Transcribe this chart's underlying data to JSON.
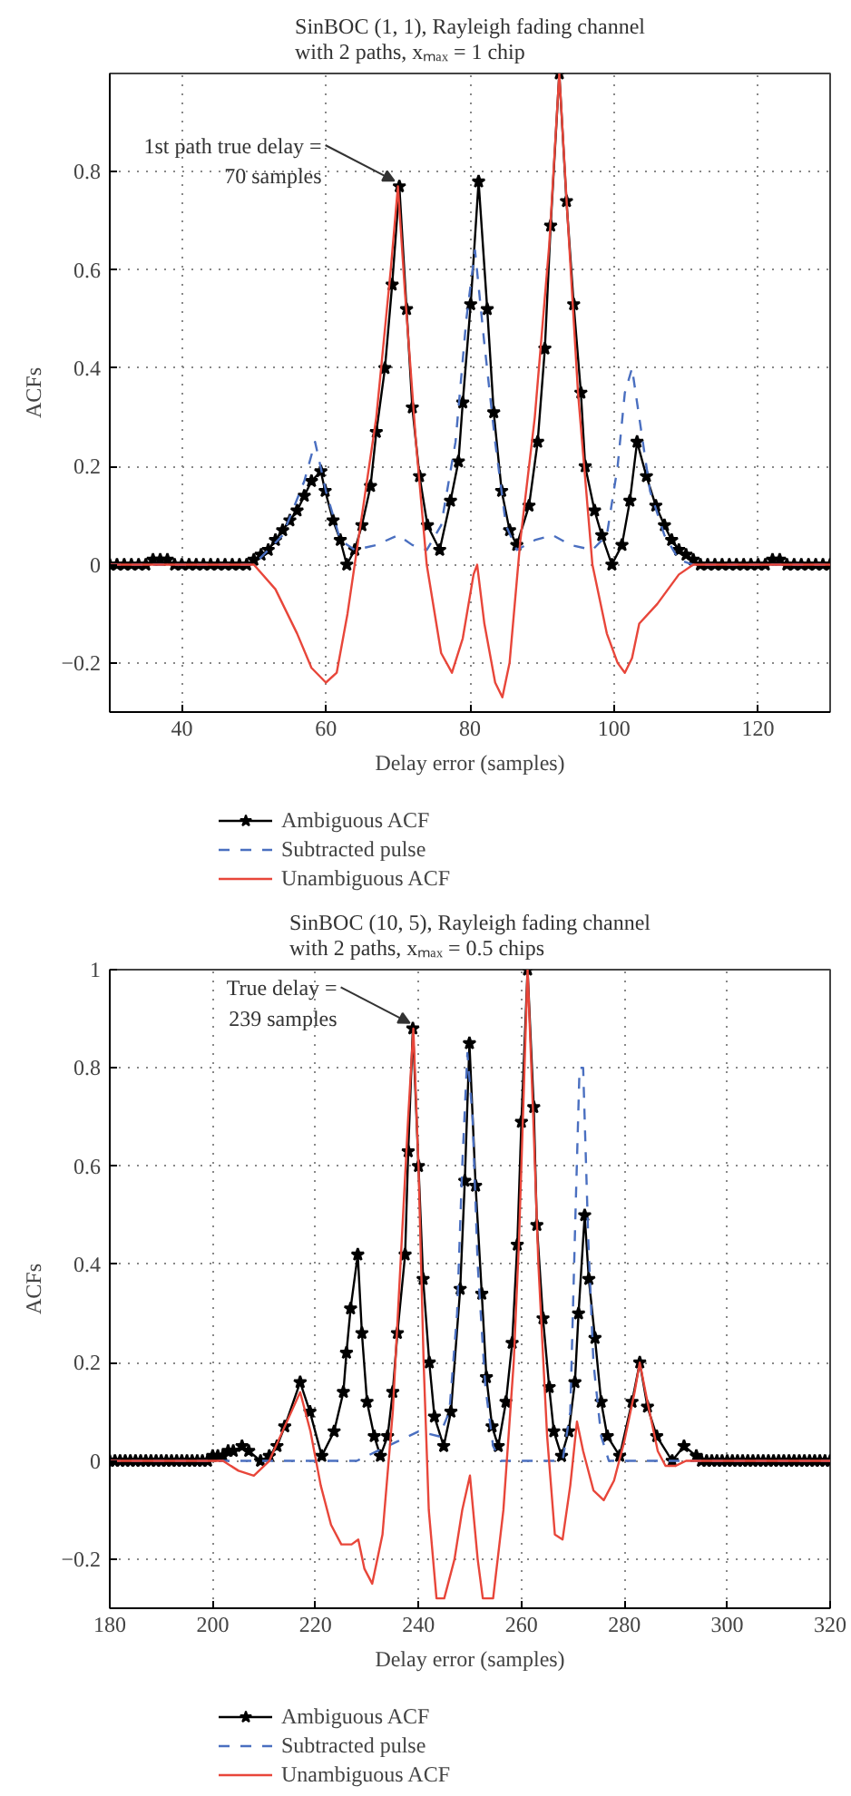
{
  "chart_data": [
    {
      "type": "line",
      "title": "SinBOC (1, 1), Rayleigh fading channel\nwith 2 paths, xₘₐₓ = 1 chip",
      "xlabel": "Delay error (samples)",
      "ylabel": "ACFs",
      "xlim": [
        30,
        130
      ],
      "ylim": [
        -0.3,
        1.0
      ],
      "xticks": [
        40,
        60,
        80,
        100,
        120
      ],
      "yticks": [
        {
          "value": -0.2,
          "label": "−0.2"
        },
        0,
        0.2,
        0.4,
        0.6,
        0.8
      ],
      "grid": true,
      "legend": "bottom",
      "annotations": [
        {
          "text": "1st path true delay =\n70 samples",
          "x": 70,
          "y": 0.77
        }
      ],
      "series": [
        {
          "name": "Ambiguous ACF",
          "color": "#000000",
          "marker": "star",
          "line_style": "solid",
          "x": [
            30,
            31,
            32,
            33,
            34,
            35,
            36,
            37,
            38,
            39,
            40,
            41,
            42,
            43,
            44,
            45,
            46,
            47,
            48,
            49,
            50,
            51,
            52,
            53,
            54,
            55,
            56,
            57,
            58,
            59.3,
            59.9,
            61,
            62,
            62.9,
            64,
            65,
            66.2,
            67,
            68.2,
            69.2,
            70.2,
            71.2,
            72,
            73,
            74.1,
            75.8,
            77.3,
            78.4,
            79,
            80.1,
            81.2,
            82.4,
            83.3,
            84.4,
            85.5,
            86.5,
            88.2,
            89.4,
            90.4,
            91.2,
            92.4,
            93.4,
            94.4,
            95.4,
            96,
            97.3,
            98.3,
            99.7,
            101.1,
            102.2,
            103.2,
            104.5,
            105.8,
            107,
            108,
            109,
            110,
            111,
            112,
            113,
            114,
            115,
            116,
            117,
            118,
            119,
            120,
            121,
            122,
            123,
            124,
            125,
            126,
            127,
            128,
            129,
            130
          ],
          "values": [
            0,
            0,
            0,
            0,
            0,
            0,
            0.01,
            0.01,
            0.01,
            0,
            0,
            0,
            0,
            0,
            0,
            0,
            0,
            0,
            0,
            0,
            0.01,
            0.02,
            0.03,
            0.05,
            0.07,
            0.09,
            0.11,
            0.14,
            0.17,
            0.19,
            0.15,
            0.09,
            0.05,
            0.0,
            0.03,
            0.08,
            0.16,
            0.27,
            0.4,
            0.57,
            0.77,
            0.52,
            0.32,
            0.18,
            0.08,
            0.03,
            0.13,
            0.21,
            0.33,
            0.53,
            0.78,
            0.52,
            0.31,
            0.15,
            0.07,
            0.04,
            0.12,
            0.25,
            0.44,
            0.69,
            1.0,
            0.74,
            0.53,
            0.35,
            0.2,
            0.11,
            0.06,
            0.0,
            0.04,
            0.13,
            0.25,
            0.18,
            0.12,
            0.08,
            0.05,
            0.03,
            0.02,
            0.01,
            0,
            0,
            0,
            0,
            0,
            0,
            0,
            0,
            0,
            0,
            0.01,
            0.01,
            0,
            0,
            0,
            0,
            0,
            0,
            0
          ]
        },
        {
          "name": "Subtracted pulse",
          "color": "#4a6fc0",
          "marker": "none",
          "line_style": "dashed",
          "x": [
            30,
            50,
            54,
            57,
            58.5,
            60,
            62,
            64,
            67,
            70,
            72,
            74,
            76,
            78,
            79.5,
            80.7,
            82,
            83.5,
            85,
            86.5,
            89,
            91.5,
            94,
            97,
            99,
            100.5,
            101.5,
            102.5,
            103.5,
            105,
            107,
            109,
            111,
            130
          ],
          "values": [
            0,
            0,
            0.06,
            0.17,
            0.25,
            0.15,
            0.05,
            0.03,
            0.04,
            0.06,
            0.04,
            0.03,
            0.08,
            0.25,
            0.5,
            0.64,
            0.45,
            0.25,
            0.08,
            0.03,
            0.05,
            0.06,
            0.04,
            0.03,
            0.06,
            0.2,
            0.35,
            0.4,
            0.3,
            0.15,
            0.06,
            0.01,
            0,
            0
          ]
        },
        {
          "name": "Unambiguous ACF",
          "color": "#e8463a",
          "marker": "none",
          "line_style": "solid",
          "x": [
            30,
            50,
            53,
            56,
            58,
            60,
            61.5,
            63,
            65,
            67,
            69,
            70,
            71,
            72.5,
            74,
            76,
            77.5,
            79,
            80.5,
            81,
            82,
            83.5,
            84.5,
            85.5,
            87,
            89,
            91,
            92.4,
            93.5,
            95,
            97,
            99,
            100.5,
            101.5,
            102.5,
            103.5,
            106,
            109,
            111,
            130
          ],
          "values": [
            0,
            0,
            -0.05,
            -0.14,
            -0.21,
            -0.24,
            -0.22,
            -0.1,
            0.1,
            0.3,
            0.6,
            0.77,
            0.55,
            0.25,
            0,
            -0.18,
            -0.22,
            -0.15,
            -0.02,
            0.0,
            -0.12,
            -0.24,
            -0.27,
            -0.2,
            0.05,
            0.3,
            0.65,
            1.0,
            0.72,
            0.35,
            0.0,
            -0.14,
            -0.2,
            -0.22,
            -0.19,
            -0.12,
            -0.08,
            -0.02,
            0,
            0
          ]
        }
      ]
    },
    {
      "type": "line",
      "title": "SinBOC (10, 5), Rayleigh fading channel\nwith 2 paths, xₘₐₓ = 0.5 chips",
      "xlabel": "Delay error (samples)",
      "ylabel": "ACFs",
      "xlim": [
        180,
        320
      ],
      "ylim": [
        -0.3,
        1.0
      ],
      "xticks": [
        180,
        200,
        220,
        240,
        260,
        280,
        300,
        320
      ],
      "yticks": [
        {
          "value": -0.2,
          "label": "−0.2"
        },
        0,
        0.2,
        0.4,
        0.6,
        0.8,
        1
      ],
      "grid": true,
      "legend": "bottom",
      "annotations": [
        {
          "text": "True delay =\n239 samples",
          "x": 239,
          "y": 0.88
        }
      ],
      "series": [
        {
          "name": "Ambiguous ACF",
          "color": "#000000",
          "marker": "star",
          "line_style": "solid",
          "x": [
            180,
            181,
            182,
            183,
            184,
            185,
            186,
            187,
            188,
            189,
            190,
            191,
            192,
            193,
            194,
            195,
            196,
            197,
            198,
            199,
            200,
            201,
            202,
            203,
            204,
            205.7,
            207,
            209.3,
            211,
            212.5,
            214,
            217,
            218.9,
            221.2,
            223.6,
            225.4,
            226,
            226.8,
            228.2,
            229,
            230,
            231.4,
            232.6,
            234,
            235,
            235.9,
            237.4,
            238,
            238.9,
            240,
            240.9,
            242.1,
            243.1,
            244.9,
            246.3,
            248.1,
            249,
            249.9,
            251.1,
            252.3,
            253.2,
            254.3,
            255.5,
            257,
            258.2,
            259.2,
            260,
            261.2,
            262.4,
            263,
            264.2,
            265.4,
            266.3,
            267.8,
            269.2,
            270.4,
            271.1,
            272.3,
            273.1,
            274.3,
            275.5,
            276.7,
            279.1,
            281.5,
            283,
            284.5,
            286.3,
            289.3,
            291.6,
            294,
            295,
            296,
            297,
            298,
            299,
            300,
            301,
            302,
            303,
            304,
            305,
            306,
            307,
            308,
            309,
            310,
            311,
            312,
            313,
            314,
            315,
            316,
            317,
            318,
            319,
            320
          ],
          "values": [
            0,
            0,
            0,
            0,
            0,
            0,
            0,
            0,
            0,
            0,
            0,
            0,
            0,
            0,
            0,
            0,
            0,
            0,
            0,
            0,
            0.01,
            0.01,
            0.01,
            0.02,
            0.02,
            0.03,
            0.02,
            0.0,
            0.01,
            0.03,
            0.07,
            0.16,
            0.1,
            0.01,
            0.06,
            0.14,
            0.22,
            0.31,
            0.42,
            0.26,
            0.12,
            0.05,
            0.01,
            0.05,
            0.14,
            0.26,
            0.42,
            0.63,
            0.88,
            0.6,
            0.37,
            0.2,
            0.09,
            0.03,
            0.1,
            0.35,
            0.57,
            0.85,
            0.56,
            0.34,
            0.17,
            0.07,
            0.03,
            0.12,
            0.24,
            0.44,
            0.69,
            1.0,
            0.72,
            0.48,
            0.29,
            0.15,
            0.06,
            0.01,
            0.06,
            0.16,
            0.3,
            0.5,
            0.37,
            0.25,
            0.12,
            0.05,
            0.01,
            0.12,
            0.2,
            0.11,
            0.05,
            0.0,
            0.03,
            0.01,
            0,
            0,
            0,
            0,
            0,
            0,
            0,
            0,
            0,
            0,
            0,
            0,
            0,
            0,
            0,
            0,
            0,
            0,
            0,
            0,
            0,
            0,
            0,
            0,
            0,
            0
          ]
        },
        {
          "name": "Subtracted pulse",
          "color": "#4a6fc0",
          "marker": "none",
          "line_style": "dashed",
          "x": [
            180,
            228,
            232,
            236,
            240,
            244,
            246,
            247.5,
            248.5,
            249.5,
            250.5,
            251.5,
            253,
            254.5,
            256,
            268,
            269.5,
            270.5,
            271.3,
            272,
            273,
            274,
            275.5,
            277,
            320
          ],
          "values": [
            0,
            0,
            0.02,
            0.04,
            0.06,
            0.05,
            0.1,
            0.3,
            0.6,
            0.83,
            0.7,
            0.4,
            0.15,
            0.03,
            0,
            0,
            0.1,
            0.5,
            0.8,
            0.8,
            0.45,
            0.2,
            0.05,
            0,
            0
          ]
        },
        {
          "name": "Unambiguous ACF",
          "color": "#e8463a",
          "marker": "none",
          "line_style": "solid",
          "x": [
            180,
            202,
            205,
            208,
            211,
            214,
            217,
            219,
            221,
            223,
            225,
            227,
            228.3,
            229.5,
            231,
            233,
            235,
            236.5,
            238,
            239,
            240,
            241,
            242,
            243.5,
            245,
            247,
            248.5,
            250,
            251.5,
            252.5,
            254.5,
            256.5,
            258.5,
            259.5,
            260.3,
            261.2,
            262.3,
            263.3,
            265,
            266.5,
            268,
            269.5,
            270.8,
            272,
            274,
            276,
            278,
            280,
            282,
            283,
            284.5,
            286.5,
            288,
            290,
            292,
            320
          ],
          "values": [
            0,
            0,
            -0.02,
            -0.03,
            0,
            0.07,
            0.14,
            0.06,
            -0.05,
            -0.13,
            -0.17,
            -0.17,
            -0.16,
            -0.22,
            -0.25,
            -0.15,
            0.1,
            0.4,
            0.7,
            0.88,
            0.6,
            0.2,
            -0.1,
            -0.28,
            -0.28,
            -0.2,
            -0.1,
            -0.03,
            -0.2,
            -0.28,
            -0.28,
            -0.1,
            0.2,
            0.44,
            0.7,
            1.0,
            0.7,
            0.4,
            0.05,
            -0.15,
            -0.16,
            -0.05,
            0.08,
            0.02,
            -0.06,
            -0.08,
            -0.04,
            0.04,
            0.14,
            0.2,
            0.12,
            0.02,
            -0.01,
            -0.01,
            0,
            0
          ]
        }
      ]
    }
  ]
}
